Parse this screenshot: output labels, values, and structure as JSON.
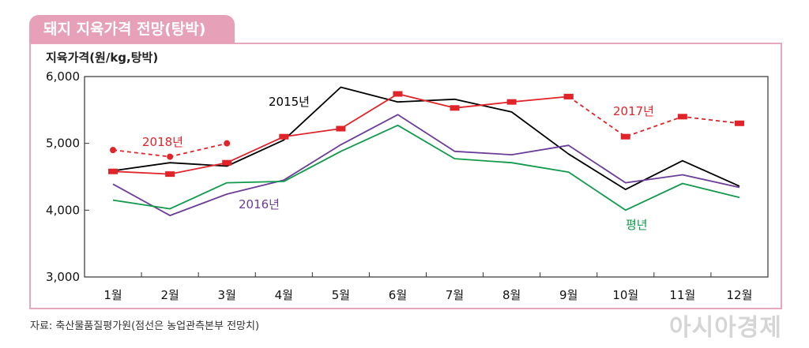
{
  "header": {
    "title": "돼지 지육가격 전망(탕박)"
  },
  "footer": {
    "source": "자료: 축산물품질평가원(점선은 농업관측본부 전망치)"
  },
  "watermark": {
    "text": "아시아경제"
  },
  "colors": {
    "y2015": "#000000",
    "y2016": "#6c3d98",
    "y2017_2018": "#e0242a",
    "avg": "#109a4c",
    "border": "#e7a7bd"
  },
  "chart_data": {
    "type": "line",
    "ylabel": "지육가격(원/kg,탕박)",
    "categories": [
      "1월",
      "2월",
      "3월",
      "4월",
      "5월",
      "6월",
      "7월",
      "8월",
      "9월",
      "10월",
      "11월",
      "12월"
    ],
    "ylim": [
      3000,
      6000
    ],
    "yticks": [
      3000,
      4000,
      5000,
      6000
    ],
    "ytick_labels": [
      "3,000",
      "4,000",
      "5,000",
      "6,000"
    ],
    "grid": false,
    "series": [
      {
        "name": "2015년",
        "values": [
          4590,
          4710,
          4660,
          5050,
          5840,
          5620,
          5660,
          5470,
          4840,
          4310,
          4740,
          4360
        ],
        "color": "#000000",
        "dashed": false,
        "markers": false
      },
      {
        "name": "2016년",
        "values": [
          4390,
          3920,
          4240,
          4450,
          4980,
          5430,
          4880,
          4830,
          4970,
          4410,
          4530,
          4340
        ],
        "color": "#6c3d98",
        "dashed": false,
        "markers": false
      },
      {
        "name": "평년",
        "values": [
          4150,
          4020,
          4410,
          4430,
          4880,
          5270,
          4770,
          4710,
          4570,
          4000,
          4400,
          4190
        ],
        "color": "#109a4c",
        "dashed": false,
        "markers": false
      },
      {
        "name": "2017년",
        "values": [
          4580,
          4540,
          4710,
          5100,
          5220,
          5740,
          5530,
          5620,
          5700,
          null,
          null,
          null
        ],
        "color": "#e0242a",
        "dashed": false,
        "markers": true
      },
      {
        "name": "",
        "values": [
          null,
          null,
          null,
          null,
          null,
          null,
          null,
          null,
          5700,
          5100,
          5400,
          5300
        ],
        "color": "#e0242a",
        "dashed": true,
        "markers": true
      },
      {
        "name": "2018년",
        "values": [
          4900,
          4800,
          5000,
          null,
          null,
          null,
          null,
          null,
          null,
          null,
          null,
          null
        ],
        "color": "#e0242a",
        "dashed": true,
        "markers": true,
        "round_markers": true
      }
    ],
    "annotations": [
      {
        "text": "2015년",
        "series": "2015년"
      },
      {
        "text": "2016년",
        "series": "2016년"
      },
      {
        "text": "평년",
        "series": "평년"
      },
      {
        "text": "2017년",
        "series": "2017년"
      },
      {
        "text": "2018년",
        "series": "2018년"
      }
    ]
  }
}
